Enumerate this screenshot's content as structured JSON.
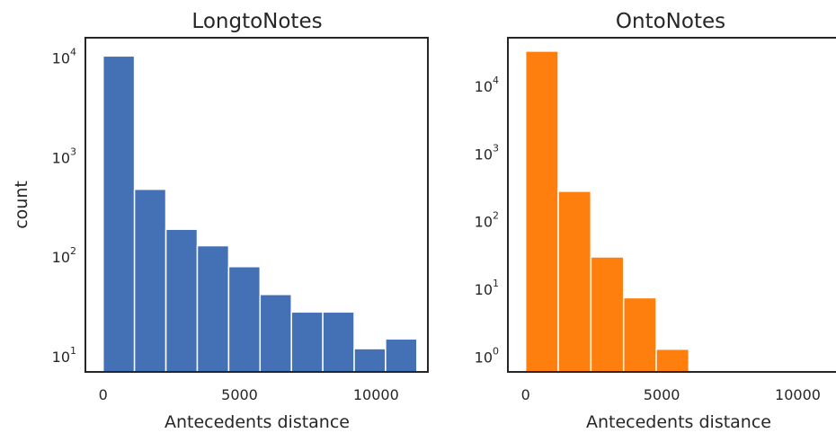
{
  "chart_data": [
    {
      "type": "bar",
      "title": "LongtoNotes",
      "xlabel": "Antecedents distance",
      "ylabel": "count",
      "yscale": "log",
      "ylim": [
        7,
        16000
      ],
      "xlim": [
        -650,
        11900
      ],
      "xticks": [
        "0",
        "5000",
        "10000"
      ],
      "yticks": [
        {
          "base": "10",
          "exp": "1"
        },
        {
          "base": "10",
          "exp": "2"
        },
        {
          "base": "10",
          "exp": "3"
        },
        {
          "base": "10",
          "exp": "4"
        }
      ],
      "color": "#4470b5",
      "grid": false,
      "bins": [
        {
          "start": 0,
          "end": 1150,
          "count": 10500
        },
        {
          "start": 1150,
          "end": 2300,
          "count": 480
        },
        {
          "start": 2300,
          "end": 3450,
          "count": 190
        },
        {
          "start": 3450,
          "end": 4600,
          "count": 130
        },
        {
          "start": 4600,
          "end": 5750,
          "count": 80
        },
        {
          "start": 5750,
          "end": 6900,
          "count": 42
        },
        {
          "start": 6900,
          "end": 8050,
          "count": 28
        },
        {
          "start": 8050,
          "end": 9200,
          "count": 28
        },
        {
          "start": 9200,
          "end": 10350,
          "count": 12
        },
        {
          "start": 10350,
          "end": 11500,
          "count": 15
        }
      ]
    },
    {
      "type": "bar",
      "title": "OntoNotes",
      "xlabel": "Antecedents distance",
      "ylabel": "",
      "yscale": "log",
      "ylim": [
        0.6,
        52000
      ],
      "xlim": [
        -650,
        11900
      ],
      "xticks": [
        "0",
        "5000",
        "10000"
      ],
      "yticks": [
        {
          "base": "10",
          "exp": "0"
        },
        {
          "base": "10",
          "exp": "1"
        },
        {
          "base": "10",
          "exp": "2"
        },
        {
          "base": "10",
          "exp": "3"
        },
        {
          "base": "10",
          "exp": "4"
        }
      ],
      "color": "#ff7f0e",
      "grid": false,
      "bins": [
        {
          "start": 0,
          "end": 1200,
          "count": 33000
        },
        {
          "start": 1200,
          "end": 2400,
          "count": 280
        },
        {
          "start": 2400,
          "end": 3600,
          "count": 30
        },
        {
          "start": 3600,
          "end": 4800,
          "count": 7.5
        },
        {
          "start": 4800,
          "end": 6000,
          "count": 1.3
        }
      ]
    }
  ]
}
